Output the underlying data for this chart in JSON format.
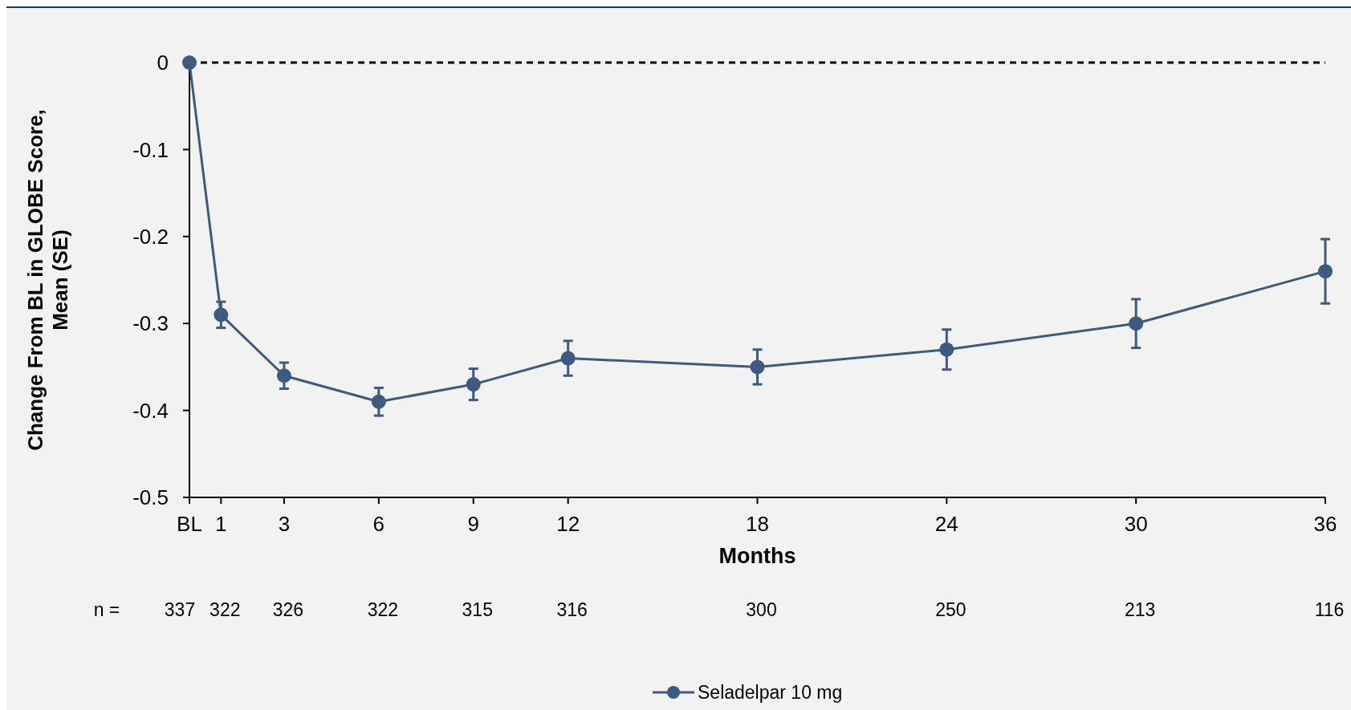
{
  "chart_data": {
    "type": "line",
    "xlabel": "Months",
    "ylabel": "Change From BL in GLOBE Score,\nMean (SE)",
    "x": [
      0,
      1,
      3,
      6,
      9,
      12,
      18,
      24,
      30,
      36
    ],
    "series": [
      {
        "name": "Seladelpar 10 mg",
        "color": "#3d5a80",
        "values": [
          0,
          -0.29,
          -0.36,
          -0.39,
          -0.37,
          -0.34,
          -0.35,
          -0.33,
          -0.3,
          -0.24
        ],
        "errors": [
          null,
          0.015,
          0.015,
          0.016,
          0.018,
          0.02,
          0.02,
          0.023,
          0.028,
          0.037
        ]
      }
    ],
    "xlim": [
      0,
      36
    ],
    "xticks": [
      {
        "value": 0,
        "label": "BL"
      },
      1,
      3,
      6,
      9,
      12,
      18,
      24,
      30,
      36
    ],
    "ylim": [
      -0.5,
      0
    ],
    "yticks": [
      0,
      -0.1,
      -0.2,
      -0.3,
      -0.4,
      -0.5
    ],
    "ref_lines": [
      {
        "axis": "y",
        "value": 0,
        "color": "#000000",
        "line_style": "dashed"
      }
    ],
    "annotations": [
      "n =",
      "337",
      "322",
      "326",
      "322",
      "315",
      "316",
      "300",
      "250",
      "213",
      "116"
    ],
    "legend": "bottom",
    "marker": "circle",
    "line_style": "solid",
    "grid": false
  }
}
